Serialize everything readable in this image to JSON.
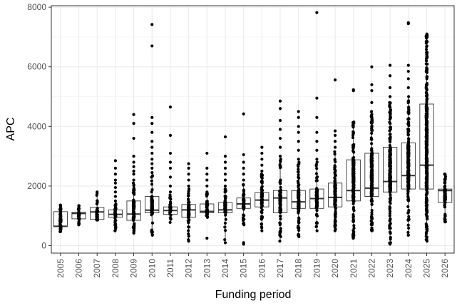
{
  "chart_data": {
    "type": "box",
    "title": "",
    "xlabel": "Funding period",
    "ylabel": "APC",
    "categories": [
      "2005",
      "2006",
      "2007",
      "2008",
      "2009",
      "2010",
      "2011",
      "2012",
      "2013",
      "2014",
      "2015",
      "2016",
      "2017",
      "2018",
      "2019",
      "2020",
      "2021",
      "2022",
      "2023",
      "2024",
      "2025",
      "2026"
    ],
    "ylim": [
      -250,
      8050
    ],
    "yticks": [
      0,
      2000,
      4000,
      6000,
      8000
    ],
    "ytick_labels": [
      "0",
      "2000",
      "4000",
      "6000",
      "8000"
    ],
    "grid": true,
    "legend": "none",
    "boxes": [
      {
        "category": "2005",
        "q1": 640,
        "median": 650,
        "q3": 1140,
        "whisker_low": 470,
        "whisker_high": 1360,
        "outliers": [
          470,
          650,
          1100,
          1360
        ]
      },
      {
        "category": "2006",
        "q1": 900,
        "median": 1080,
        "q3": 1120,
        "whisker_low": 700,
        "whisker_high": 1340,
        "outliers": [
          700,
          800,
          1000,
          1150,
          1250,
          1300,
          1340
        ]
      },
      {
        "category": "2007",
        "q1": 880,
        "median": 1130,
        "q3": 1280,
        "whisker_low": 860,
        "whisker_high": 1690,
        "outliers": [
          1750,
          1800
        ]
      },
      {
        "category": "2008",
        "q1": 950,
        "median": 1050,
        "q3": 1200,
        "whisker_low": 500,
        "whisker_high": 1400,
        "outliers": [
          1500,
          1650,
          1800,
          1950,
          2100,
          2200,
          2400,
          2600,
          2850
        ]
      },
      {
        "category": "2009",
        "q1": 850,
        "median": 1060,
        "q3": 1500,
        "whisker_low": 420,
        "whisker_high": 2100,
        "outliers": [
          2200,
          2400,
          2500,
          2650,
          2800,
          3000,
          3600,
          4100,
          4400
        ]
      },
      {
        "category": "2010",
        "q1": 1100,
        "median": 1190,
        "q3": 1650,
        "whisker_low": 350,
        "whisker_high": 2350,
        "outliers": [
          2450,
          2600,
          2750,
          2900,
          3100,
          3300,
          3500,
          3800,
          4100,
          4300,
          6700,
          7420
        ]
      },
      {
        "category": "2011",
        "q1": 1050,
        "median": 1180,
        "q3": 1300,
        "whisker_low": 780,
        "whisker_high": 1700,
        "outliers": [
          1800,
          2000,
          2300,
          2600,
          2800,
          3100,
          3700,
          4650
        ]
      },
      {
        "category": "2012",
        "q1": 950,
        "median": 1200,
        "q3": 1380,
        "whisker_low": 200,
        "whisker_high": 1900,
        "outliers": [
          150,
          2000,
          2200,
          2400,
          2600,
          2750
        ]
      },
      {
        "category": "2013",
        "q1": 1100,
        "median": 1150,
        "q3": 1400,
        "whisker_low": 950,
        "whisker_high": 1750,
        "outliers": [
          250,
          1800,
          2000,
          2200,
          2400,
          2600,
          3100
        ]
      },
      {
        "category": "2014",
        "q1": 1100,
        "median": 1200,
        "q3": 1450,
        "whisker_low": 200,
        "whisker_high": 1900,
        "outliers": [
          100,
          2000,
          2200,
          2400,
          2600,
          2800,
          3000,
          3650
        ]
      },
      {
        "category": "2015",
        "q1": 1250,
        "median": 1400,
        "q3": 1600,
        "whisker_low": 700,
        "whisker_high": 2050,
        "outliers": [
          100,
          50,
          2200,
          2400,
          2600,
          2800,
          3050,
          4420
        ]
      },
      {
        "category": "2016",
        "q1": 1300,
        "median": 1530,
        "q3": 1780,
        "whisker_low": 600,
        "whisker_high": 2400,
        "outliers": [
          500,
          2500,
          2700,
          2900,
          3100,
          3300
        ]
      },
      {
        "category": "2017",
        "q1": 1100,
        "median": 1600,
        "q3": 1850,
        "whisker_low": 150,
        "whisker_high": 2900,
        "outliers": [
          3000,
          3300,
          3600,
          3900,
          4200,
          4600,
          4850
        ]
      },
      {
        "category": "2018",
        "q1": 1250,
        "median": 1470,
        "q3": 1850,
        "whisker_low": 300,
        "whisker_high": 2800,
        "outliers": [
          2900,
          3200,
          3500,
          3800,
          4000,
          4300,
          4500
        ]
      },
      {
        "category": "2019",
        "q1": 1250,
        "median": 1580,
        "q3": 1900,
        "whisker_low": 500,
        "whisker_high": 2800,
        "outliers": [
          2900,
          3200,
          3500,
          3800,
          4300,
          4950,
          7820
        ]
      },
      {
        "category": "2020",
        "q1": 1300,
        "median": 1620,
        "q3": 2100,
        "whisker_low": 500,
        "whisker_high": 3150,
        "outliers": [
          3300,
          3500,
          3700,
          3850,
          5560
        ]
      },
      {
        "category": "2021",
        "q1": 1500,
        "median": 1850,
        "q3": 2880,
        "whisker_low": 250,
        "whisker_high": 4150,
        "outliers": [
          5200,
          5230
        ]
      },
      {
        "category": "2022",
        "q1": 1650,
        "median": 1930,
        "q3": 3100,
        "whisker_low": 500,
        "whisker_high": 4500,
        "outliers": [
          4800,
          5200,
          5400,
          6000
        ]
      },
      {
        "category": "2023",
        "q1": 1800,
        "median": 2150,
        "q3": 3300,
        "whisker_low": 50,
        "whisker_high": 4800,
        "outliers": [
          5000,
          5300,
          5700,
          6050
        ]
      },
      {
        "category": "2024",
        "q1": 1900,
        "median": 2350,
        "q3": 3450,
        "whisker_low": 350,
        "whisker_high": 5000,
        "outliers": [
          5300,
          5600,
          5850,
          6050,
          7450,
          7480
        ]
      },
      {
        "category": "2025",
        "q1": 1900,
        "median": 2700,
        "q3": 4750,
        "whisker_low": 150,
        "whisker_high": 7100,
        "outliers": [
          7050
        ]
      },
      {
        "category": "2026",
        "q1": 1450,
        "median": 1850,
        "q3": 1900,
        "whisker_low": 800,
        "whisker_high": 2400,
        "outliers": [
          800,
          1000,
          2000,
          2200,
          2400
        ]
      }
    ]
  }
}
